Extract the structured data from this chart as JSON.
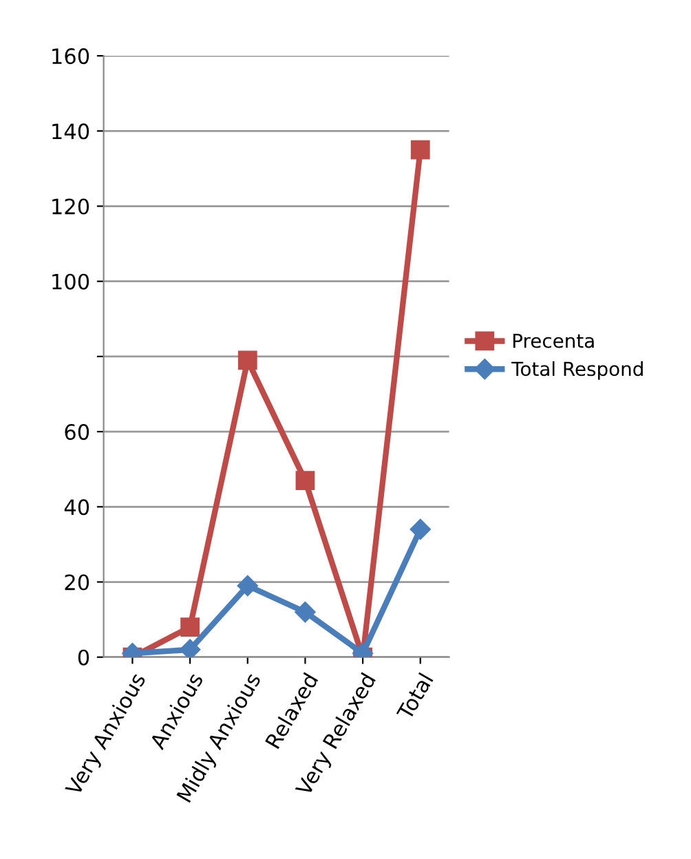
{
  "chart_data": {
    "type": "line",
    "categories": [
      "Very Anxious",
      "Anxious",
      "Midly Anxious",
      "Relaxed",
      "Very Relaxed",
      "Total"
    ],
    "series": [
      {
        "name": "Precenta",
        "color": "#be4b48",
        "marker": "square",
        "values": [
          0,
          8,
          79,
          47,
          0,
          135
        ]
      },
      {
        "name": "Total Respond",
        "color": "#4a7ebb",
        "marker": "diamond",
        "values": [
          1,
          2,
          19,
          12,
          1,
          34
        ]
      }
    ],
    "ylim": [
      0,
      160
    ],
    "yticks": [
      0,
      20,
      40,
      60,
      {
        "value": 80,
        "label": null
      },
      100,
      120,
      140,
      160
    ],
    "grid": "y",
    "legend": "right",
    "line_style": "solid"
  }
}
